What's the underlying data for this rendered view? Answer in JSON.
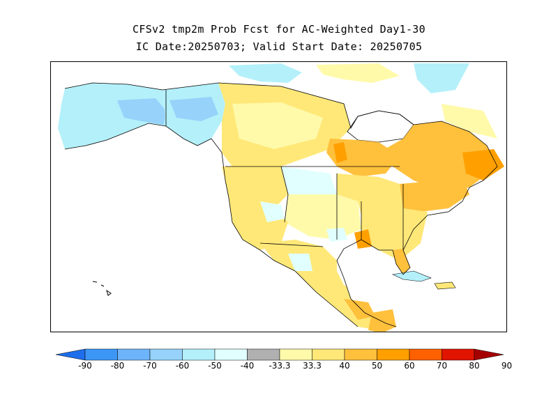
{
  "title_line1": "CFSv2 tmp2m Prob Fcst for AC-Weighted Day1-30",
  "title_line2": "IC Date:20250703; Valid Start Date: 20250705",
  "legend": {
    "bins": [
      {
        "color": "#1e6eeb"
      },
      {
        "color": "#3c96f5"
      },
      {
        "color": "#6eb4fa"
      },
      {
        "color": "#96d2fa"
      },
      {
        "color": "#b4f0fa"
      },
      {
        "color": "#e1ffff"
      },
      {
        "color": "#b0b0b0"
      },
      {
        "color": "#fffaaa"
      },
      {
        "color": "#ffe878"
      },
      {
        "color": "#ffc03c"
      },
      {
        "color": "#ffa000"
      },
      {
        "color": "#ff6000"
      },
      {
        "color": "#e11400"
      },
      {
        "color": "#a50000"
      }
    ],
    "labels": [
      "-90",
      "-80",
      "-70",
      "-60",
      "-50",
      "-40",
      "-33.3",
      "33.3",
      "40",
      "50",
      "60",
      "70",
      "80",
      "90"
    ]
  }
}
